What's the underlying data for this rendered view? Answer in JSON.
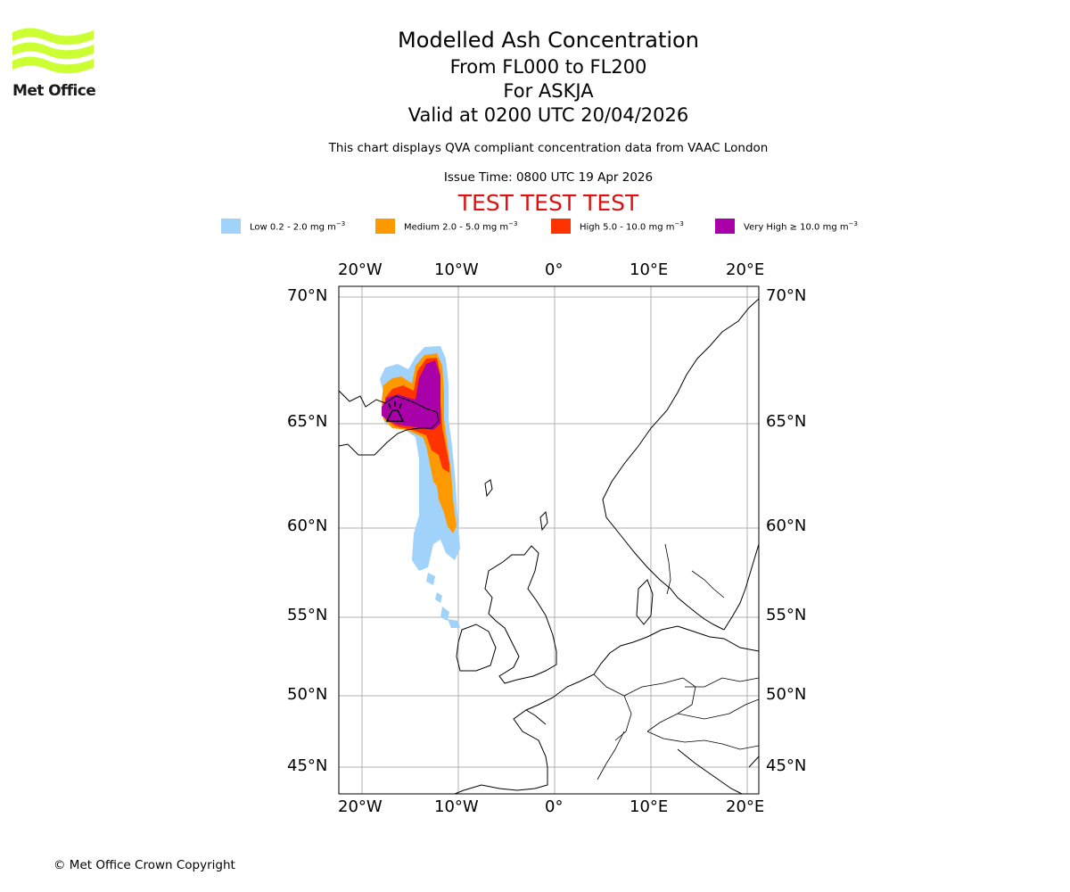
{
  "header": {
    "title": "Modelled Ash Concentration",
    "levels": "From FL000 to FL200",
    "volcano": "For ASKJA",
    "valid": "Valid at 0200 UTC 20/04/2026",
    "description": "This chart displays QVA compliant concentration data from VAAC London",
    "issue_time": "Issue Time: 0800 UTC 19 Apr 2026",
    "test_banner": "TEST TEST TEST"
  },
  "logo": {
    "text": "Met Office",
    "color": "#ccff33"
  },
  "legend": [
    {
      "label": "Low 0.2 - 2.0 mg m",
      "unit_exp": "−3",
      "color": "#a0d2fa"
    },
    {
      "label": "Medium 2.0 - 5.0 mg m",
      "unit_exp": "−3",
      "color": "#ff9900"
    },
    {
      "label": "High 5.0 - 10.0 mg m",
      "unit_exp": "−3",
      "color": "#ff3300"
    },
    {
      "label": "Very High ≥ 10.0 mg m",
      "unit_exp": "−3",
      "color": "#aa00aa"
    }
  ],
  "map": {
    "lon_ticks": [
      "20°W",
      "10°W",
      "0°",
      "10°E",
      "20°E"
    ],
    "lat_ticks": [
      "70°N",
      "65°N",
      "60°N",
      "55°N",
      "50°N",
      "45°N"
    ],
    "grid_color": "#b0b0b0"
  },
  "footer": {
    "copyright": "© Met Office Crown Copyright"
  }
}
